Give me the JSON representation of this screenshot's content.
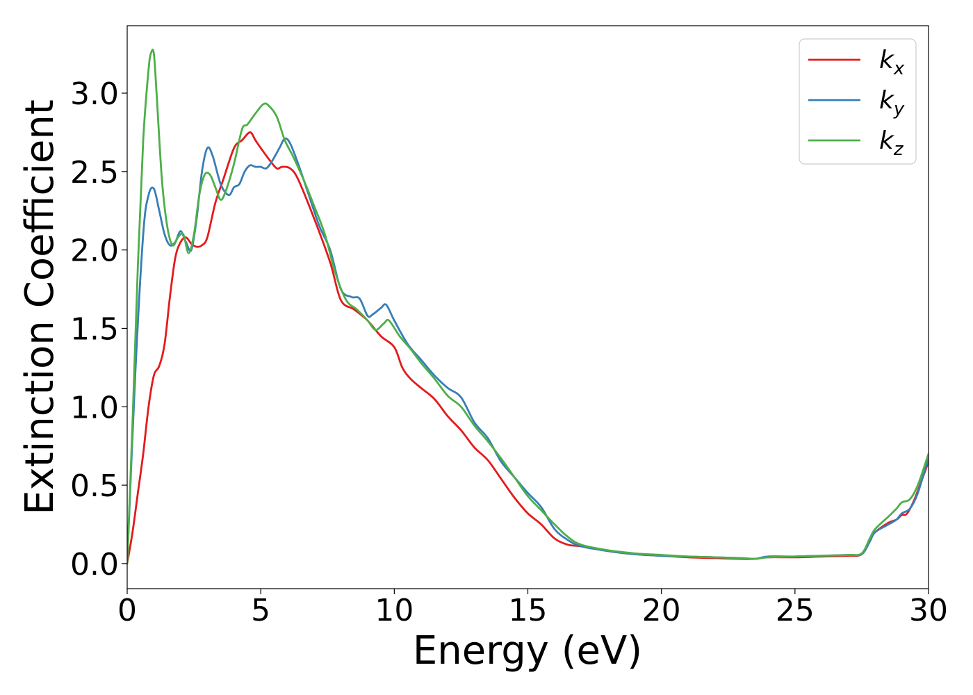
{
  "chart_data": {
    "type": "line",
    "title": "",
    "xlabel": "Energy (eV)",
    "ylabel": "Extinction Coefficient",
    "xlim": [
      0,
      30
    ],
    "ylim": [
      -0.16,
      3.43
    ],
    "xticks": [
      0,
      5,
      10,
      15,
      20,
      25,
      30
    ],
    "xtick_labels": [
      "0",
      "5",
      "10",
      "15",
      "20",
      "25",
      "30"
    ],
    "yticks": [
      0.0,
      0.5,
      1.0,
      1.5,
      2.0,
      2.5,
      3.0
    ],
    "ytick_labels": [
      "0.0",
      "0.5",
      "1.0",
      "1.5",
      "2.0",
      "2.5",
      "3.0"
    ],
    "grid": false,
    "legend_position": "top-right",
    "series": [
      {
        "name": "k_x",
        "legend_base": "k",
        "legend_sub": "x",
        "color": "#e41a1c",
        "x": [
          0,
          0.2,
          0.4,
          0.6,
          0.8,
          1.0,
          1.2,
          1.4,
          1.6,
          1.8,
          2.0,
          2.2,
          2.4,
          2.6,
          2.8,
          3.0,
          3.3,
          3.6,
          4.0,
          4.3,
          4.6,
          4.8,
          5.0,
          5.3,
          5.6,
          5.8,
          6.1,
          6.4,
          7.0,
          7.6,
          8.0,
          8.5,
          9.0,
          9.5,
          10.0,
          10.3,
          10.6,
          11.0,
          11.5,
          12.0,
          12.5,
          13.0,
          13.5,
          14.0,
          14.5,
          15.0,
          15.5,
          16.0,
          16.5,
          17.0,
          18.0,
          19.0,
          20.0,
          21.0,
          22.0,
          23.0,
          23.5,
          24.0,
          25.0,
          26.0,
          27.0,
          27.5,
          27.8,
          28.0,
          28.5,
          28.8,
          29.0,
          29.2,
          29.5,
          30.0
        ],
        "values": [
          0.0,
          0.2,
          0.45,
          0.7,
          1.0,
          1.2,
          1.26,
          1.4,
          1.7,
          1.95,
          2.05,
          2.08,
          2.04,
          2.02,
          2.03,
          2.08,
          2.3,
          2.45,
          2.65,
          2.7,
          2.75,
          2.7,
          2.65,
          2.58,
          2.52,
          2.53,
          2.52,
          2.45,
          2.2,
          1.92,
          1.68,
          1.62,
          1.55,
          1.45,
          1.38,
          1.25,
          1.18,
          1.12,
          1.05,
          0.94,
          0.85,
          0.74,
          0.66,
          0.54,
          0.42,
          0.32,
          0.25,
          0.16,
          0.12,
          0.11,
          0.08,
          0.06,
          0.05,
          0.04,
          0.035,
          0.03,
          0.03,
          0.04,
          0.04,
          0.045,
          0.05,
          0.06,
          0.15,
          0.2,
          0.26,
          0.28,
          0.31,
          0.32,
          0.42,
          0.65
        ]
      },
      {
        "name": "k_y",
        "legend_base": "k",
        "legend_sub": "y",
        "color": "#377eb8",
        "x": [
          0,
          0.3,
          0.6,
          0.8,
          1.0,
          1.2,
          1.4,
          1.6,
          1.8,
          2.0,
          2.2,
          2.4,
          2.6,
          2.8,
          3.0,
          3.2,
          3.5,
          3.8,
          4.0,
          4.2,
          4.4,
          4.6,
          4.8,
          5.0,
          5.2,
          5.4,
          5.7,
          5.9,
          6.1,
          6.4,
          6.8,
          7.2,
          7.6,
          8.0,
          8.4,
          8.7,
          9.0,
          9.2,
          9.5,
          9.7,
          10.0,
          10.5,
          11.0,
          11.5,
          12.0,
          12.5,
          13.0,
          13.5,
          14.0,
          14.5,
          15.0,
          15.5,
          16.0,
          16.5,
          17.0,
          18.0,
          19.0,
          20.0,
          21.0,
          22.0,
          23.0,
          23.5,
          24.0,
          25.0,
          26.0,
          27.0,
          27.5,
          27.8,
          28.0,
          28.5,
          28.8,
          29.0,
          29.3,
          29.6,
          30.0
        ],
        "values": [
          0.0,
          1.2,
          2.1,
          2.35,
          2.39,
          2.25,
          2.1,
          2.03,
          2.05,
          2.12,
          2.05,
          2.0,
          2.2,
          2.5,
          2.65,
          2.6,
          2.42,
          2.35,
          2.4,
          2.42,
          2.5,
          2.54,
          2.53,
          2.53,
          2.52,
          2.56,
          2.65,
          2.71,
          2.68,
          2.55,
          2.35,
          2.15,
          2.0,
          1.75,
          1.7,
          1.69,
          1.58,
          1.59,
          1.63,
          1.65,
          1.55,
          1.4,
          1.3,
          1.2,
          1.12,
          1.06,
          0.9,
          0.8,
          0.65,
          0.55,
          0.45,
          0.36,
          0.22,
          0.15,
          0.11,
          0.08,
          0.06,
          0.05,
          0.045,
          0.04,
          0.035,
          0.03,
          0.045,
          0.045,
          0.05,
          0.055,
          0.06,
          0.14,
          0.2,
          0.25,
          0.28,
          0.32,
          0.35,
          0.45,
          0.68
        ]
      },
      {
        "name": "k_z",
        "legend_base": "k",
        "legend_sub": "z",
        "color": "#4daf4a",
        "x": [
          0,
          0.2,
          0.4,
          0.6,
          0.8,
          0.9,
          1.0,
          1.1,
          1.3,
          1.5,
          1.7,
          1.9,
          2.1,
          2.3,
          2.5,
          2.7,
          2.9,
          3.1,
          3.3,
          3.5,
          3.7,
          4.0,
          4.3,
          4.5,
          4.8,
          5.1,
          5.3,
          5.6,
          5.9,
          6.2,
          6.6,
          7.0,
          7.4,
          7.8,
          8.2,
          8.6,
          9.0,
          9.3,
          9.6,
          9.8,
          10.2,
          10.6,
          11.0,
          11.5,
          12.0,
          12.5,
          13.0,
          13.5,
          14.0,
          14.5,
          15.0,
          15.5,
          16.0,
          16.5,
          17.0,
          18.0,
          19.0,
          20.0,
          21.0,
          22.0,
          23.0,
          23.5,
          24.0,
          25.0,
          26.0,
          27.0,
          27.5,
          27.8,
          28.0,
          28.5,
          28.8,
          29.0,
          29.3,
          29.6,
          30.0
        ],
        "values": [
          0.0,
          0.9,
          1.9,
          2.7,
          3.15,
          3.26,
          3.25,
          3.0,
          2.45,
          2.15,
          2.03,
          2.08,
          2.1,
          1.98,
          2.1,
          2.35,
          2.48,
          2.48,
          2.4,
          2.32,
          2.38,
          2.55,
          2.77,
          2.8,
          2.87,
          2.93,
          2.92,
          2.85,
          2.7,
          2.6,
          2.45,
          2.28,
          2.1,
          1.85,
          1.68,
          1.62,
          1.55,
          1.49,
          1.53,
          1.55,
          1.45,
          1.37,
          1.28,
          1.18,
          1.07,
          1.0,
          0.88,
          0.78,
          0.67,
          0.55,
          0.43,
          0.34,
          0.25,
          0.17,
          0.12,
          0.085,
          0.065,
          0.055,
          0.045,
          0.04,
          0.035,
          0.03,
          0.04,
          0.045,
          0.05,
          0.055,
          0.065,
          0.16,
          0.22,
          0.3,
          0.35,
          0.39,
          0.41,
          0.5,
          0.7
        ]
      }
    ]
  }
}
